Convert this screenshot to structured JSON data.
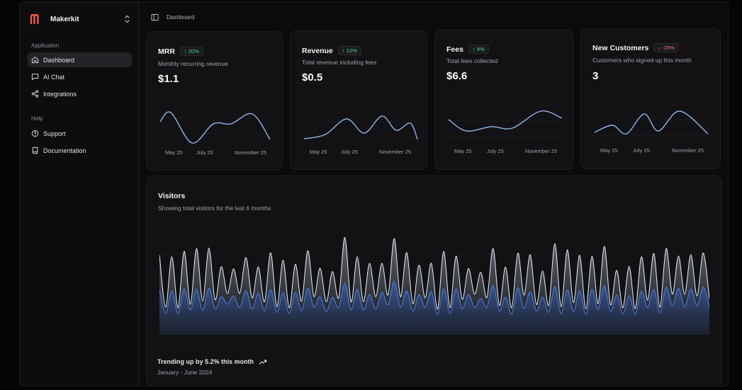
{
  "brand": {
    "name": "Makerkit",
    "logo_color": "#f05a4a"
  },
  "sidebar": {
    "groups": [
      {
        "label": "Application",
        "items": [
          {
            "label": "Dashboard",
            "icon": "home-icon",
            "active": true
          },
          {
            "label": "AI Chat",
            "icon": "chat-icon"
          },
          {
            "label": "Integrations",
            "icon": "share-icon"
          }
        ]
      },
      {
        "label": "Help",
        "items": [
          {
            "label": "Support",
            "icon": "help-circle-icon"
          },
          {
            "label": "Documentation",
            "icon": "book-icon"
          }
        ]
      }
    ]
  },
  "header": {
    "breadcrumb": "Dashboard"
  },
  "cards": [
    {
      "title": "MRR",
      "badge": "↑ 20%",
      "trend": "up",
      "subtitle": "Monthly recurring revenue",
      "value": "$1.1",
      "ticks": [
        "May 25",
        "July 25",
        "November 25"
      ],
      "line_color": "#8fb6e6"
    },
    {
      "title": "Revenue",
      "badge": "↑ 12%",
      "trend": "up",
      "subtitle": "Total revenue including fees",
      "value": "$0.5",
      "ticks": [
        "May 25",
        "July 25",
        "November 25"
      ],
      "line_color": "#8fb6e6"
    },
    {
      "title": "Fees",
      "badge": "↑ 9%",
      "trend": "up",
      "subtitle": "Total fees collected",
      "value": "$6.6",
      "ticks": [
        "May 25",
        "July 25",
        "November 25"
      ],
      "line_color": "#8fb6e6"
    },
    {
      "title": "New Customers",
      "badge": "↓ -25%",
      "trend": "down",
      "subtitle": "Customers who signed up this month",
      "value": "3",
      "ticks": [
        "May 25",
        "July 25",
        "November 25"
      ],
      "line_color": "#8fb6e6"
    }
  ],
  "visitors": {
    "title": "Visitors",
    "subtitle": "Showing total visitors for the last 6 months",
    "trend_text": "Trending up by 5.2% this month",
    "range_text": "January - June 2024",
    "colors": {
      "desktop": "#9aa6b6",
      "mobile": "#3b6fd6"
    }
  }
}
